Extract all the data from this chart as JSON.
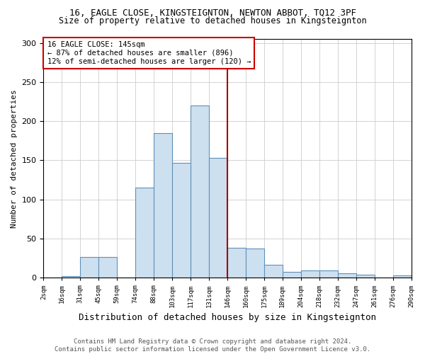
{
  "title_line1": "16, EAGLE CLOSE, KINGSTEIGNTON, NEWTON ABBOT, TQ12 3PF",
  "title_line2": "Size of property relative to detached houses in Kingsteignton",
  "xlabel": "Distribution of detached houses by size in Kingsteignton",
  "ylabel": "Number of detached properties",
  "categories": [
    "2sqm",
    "16sqm",
    "31sqm",
    "45sqm",
    "59sqm",
    "74sqm",
    "88sqm",
    "103sqm",
    "117sqm",
    "131sqm",
    "146sqm",
    "160sqm",
    "175sqm",
    "189sqm",
    "204sqm",
    "218sqm",
    "232sqm",
    "247sqm",
    "261sqm",
    "276sqm",
    "290sqm"
  ],
  "values": [
    0,
    2,
    27,
    27,
    0,
    115,
    185,
    147,
    220,
    153,
    38,
    37,
    17,
    8,
    9,
    9,
    6,
    4,
    0,
    3,
    0
  ],
  "bar_color": "#cde0f0",
  "bar_edge_color": "#6090b8",
  "vline_x_idx": 10,
  "vline_color": "#aa0000",
  "annotation_box_text": "16 EAGLE CLOSE: 145sqm\n← 87% of detached houses are smaller (896)\n12% of semi-detached houses are larger (120) →",
  "annotation_box_color": "#cc0000",
  "ylim": [
    0,
    305
  ],
  "yticks": [
    0,
    50,
    100,
    150,
    200,
    250,
    300
  ],
  "footer": "Contains HM Land Registry data © Crown copyright and database right 2024.\nContains public sector information licensed under the Open Government Licence v3.0.",
  "bg_color": "#ffffff",
  "grid_color": "#cccccc",
  "title1_fontsize": 9,
  "title2_fontsize": 8.5,
  "ylabel_fontsize": 8,
  "xlabel_fontsize": 9
}
